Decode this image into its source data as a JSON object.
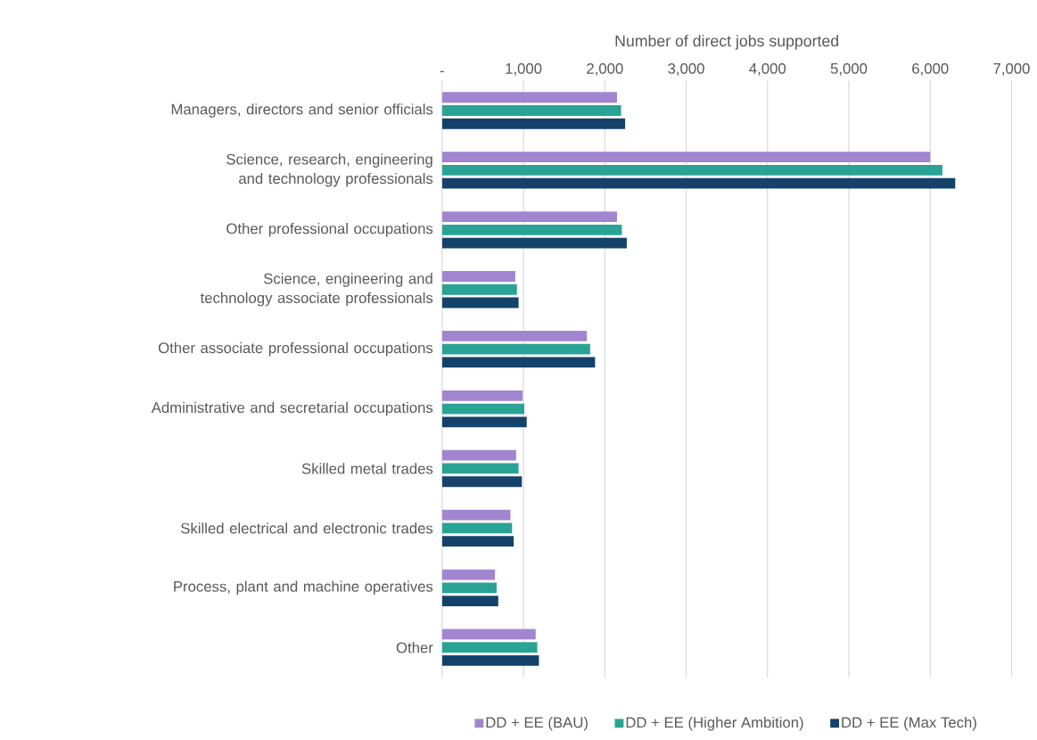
{
  "chart_data": {
    "type": "bar",
    "orientation": "horizontal",
    "xlabel": "Number of direct jobs supported",
    "categories": [
      "Managers, directors and senior officials",
      "Science, research, engineering and technology professionals",
      "Other professional occupations",
      "Science, engineering and technology associate professionals",
      "Other associate professional occupations",
      "Administrative and secretarial occupations",
      "Skilled metal trades",
      "Skilled electrical and electronic trades",
      "Process, plant and machine operatives",
      "Other"
    ],
    "series": [
      {
        "name": "DD + EE (BAU)",
        "color": "#a285d1",
        "values": [
          2150,
          6000,
          2150,
          900,
          1780,
          990,
          910,
          840,
          650,
          1150
        ]
      },
      {
        "name": "DD + EE (Higher Ambition)",
        "color": "#29a396",
        "values": [
          2200,
          6150,
          2210,
          920,
          1820,
          1010,
          940,
          860,
          670,
          1170
        ]
      },
      {
        "name": "DD + EE (Max Tech)",
        "color": "#14426b",
        "values": [
          2250,
          6310,
          2270,
          940,
          1880,
          1040,
          980,
          880,
          690,
          1190
        ]
      }
    ],
    "xlim": [
      0,
      7000
    ],
    "xticks": [
      {
        "value": 0,
        "label": "-"
      },
      {
        "value": 1000,
        "label": "1,000"
      },
      {
        "value": 2000,
        "label": "2,000"
      },
      {
        "value": 3000,
        "label": "3,000"
      },
      {
        "value": 4000,
        "label": "4,000"
      },
      {
        "value": 5000,
        "label": "5,000"
      },
      {
        "value": 6000,
        "label": "6,000"
      },
      {
        "value": 7000,
        "label": "7,000"
      }
    ],
    "grid": "x",
    "legend": "bottom"
  }
}
